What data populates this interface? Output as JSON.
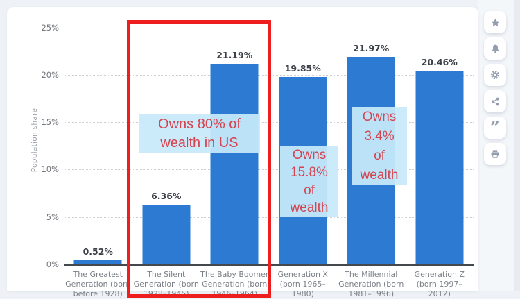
{
  "chart_data": {
    "type": "bar",
    "title": "",
    "xlabel": "",
    "ylabel": "Population share",
    "ylim": [
      0,
      25
    ],
    "grid": true,
    "legend": false,
    "bar_color": "#2d7ad2",
    "ytick_labels": [
      "25%",
      "20%",
      "15%",
      "10%",
      "5%",
      "0%"
    ],
    "categories": [
      "The Greatest\nGeneration (born\nbefore 1928)",
      "The Silent\nGeneration (born\n1928–1945)",
      "The Baby Boomer\nGeneration (born\n1946–1964)",
      "Generation X\n(born 1965–\n1980)",
      "The Millennial\nGeneration (born\n1981–1996)",
      "Generation Z\n(born 1997–\n2012)"
    ],
    "values": [
      0.52,
      6.36,
      21.19,
      19.85,
      21.97,
      20.46
    ],
    "value_labels": [
      "0.52%",
      "6.36%",
      "21.19%",
      "19.85%",
      "21.97%",
      "20.46%"
    ]
  },
  "annotations": {
    "owns_80": "Owns 80% of\nwealth in US",
    "owns_158": "Owns\n15.8%\nof\nwealth",
    "owns_34": "Owns\n3.4%\nof\nwealth",
    "text_color": "#d6434f",
    "box_bg": "rgba(199,233,250,0.93)",
    "highlight_color": "#ee1e1e"
  },
  "sidebar": {
    "buttons": [
      {
        "icon": "star-icon"
      },
      {
        "icon": "bell-icon"
      },
      {
        "icon": "gear-icon"
      },
      {
        "icon": "share-icon"
      },
      {
        "icon": "quote-icon"
      },
      {
        "icon": "print-icon"
      }
    ]
  }
}
